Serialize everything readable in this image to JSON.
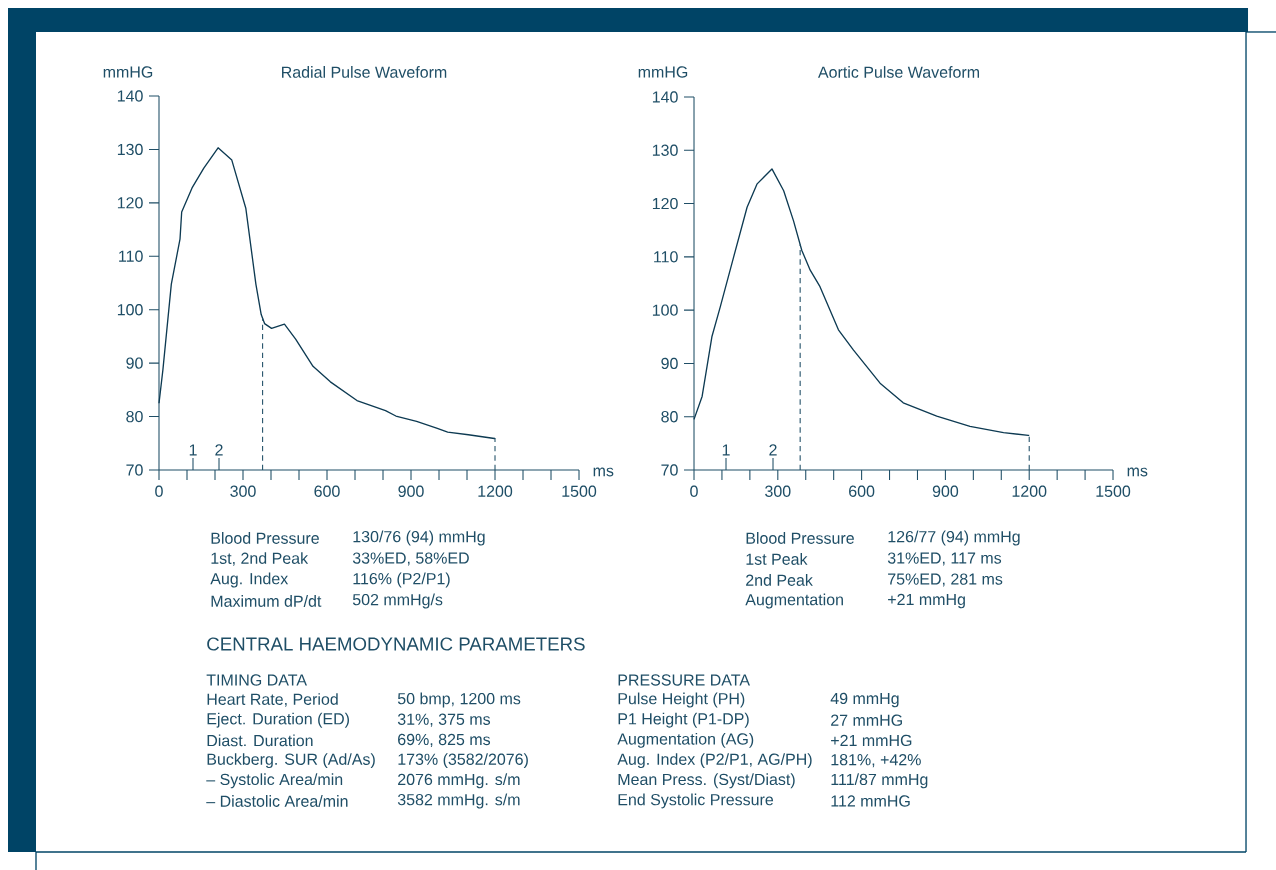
{
  "chart_data": [
    {
      "type": "line",
      "title": "Radial Pulse Waveform",
      "xlabel": "ms",
      "ylabel": "mmHG",
      "x": [
        0,
        14,
        44,
        75,
        81,
        118,
        160,
        211,
        260,
        310,
        346,
        365,
        377,
        402,
        448,
        488,
        550,
        612,
        707,
        809,
        846,
        920,
        994,
        1031,
        1105,
        1198,
        1200
      ],
      "series": [
        {
          "color": "#0d3a52",
          "values": [
            82.5,
            88.8,
            104.8,
            113.2,
            118.3,
            122.8,
            126.5,
            130.3,
            128.0,
            119.0,
            104.8,
            99.1,
            97.4,
            96.5,
            97.3,
            94.5,
            89.4,
            86.5,
            83.0,
            81.1,
            80.1,
            79.1,
            77.8,
            77.1,
            76.6,
            75.9,
            76.0
          ]
        }
      ],
      "xlim": [
        0,
        1500
      ],
      "ylim": [
        70,
        140
      ],
      "xticks": [
        0,
        {
          "value": 100,
          "label": null
        },
        {
          "value": 200,
          "label": null
        },
        300,
        {
          "value": 400,
          "label": null
        },
        {
          "value": 500,
          "label": null
        },
        600,
        {
          "value": 700,
          "label": null
        },
        {
          "value": 800,
          "label": null
        },
        900,
        {
          "value": 1000,
          "label": null
        },
        {
          "value": 1100,
          "label": null
        },
        1200,
        {
          "value": 1300,
          "label": null
        },
        {
          "value": 1400,
          "label": null
        },
        1500
      ],
      "yticks": [
        70,
        80,
        90,
        100,
        110,
        120,
        130,
        140
      ],
      "ref_lines": [
        {
          "axis": "x",
          "value": 370,
          "line_style": "dashed"
        },
        {
          "axis": "x",
          "value": 1200,
          "line_style": "dashed"
        }
      ],
      "annotations": [
        "1",
        "2",
        "Blood Pressure",
        "130/76 (94) mmHg",
        "1st, 2nd Peak",
        "33%ED, 58%ED",
        "Aug. Index",
        "116% (P2/P1)",
        "Maximum dP/dt",
        "502 mmHg/s"
      ]
    },
    {
      "type": "line",
      "title": "Aortic Pulse Waveform",
      "xlabel": "ms",
      "ylabel": "mmHG",
      "x": [
        0,
        29,
        46.5,
        64,
        94,
        142,
        190,
        226,
        279,
        321,
        356,
        386,
        416,
        451,
        517,
        571,
        666,
        749,
        869,
        988,
        1108,
        1197,
        1200
      ],
      "series": [
        {
          "color": "#0d3a52",
          "values": [
            79.5,
            83.8,
            89.4,
            95.0,
            100.6,
            110.0,
            119.3,
            123.7,
            126.5,
            122.4,
            116.8,
            111.2,
            107.5,
            104.4,
            96.3,
            92.5,
            86.3,
            82.6,
            80.1,
            78.2,
            77.0,
            76.5,
            76.5
          ]
        }
      ],
      "xlim": [
        0,
        1500
      ],
      "ylim": [
        70,
        140
      ],
      "xticks": [
        0,
        {
          "value": 100,
          "label": null
        },
        {
          "value": 200,
          "label": null
        },
        300,
        {
          "value": 400,
          "label": null
        },
        {
          "value": 500,
          "label": null
        },
        600,
        {
          "value": 700,
          "label": null
        },
        {
          "value": 800,
          "label": null
        },
        900,
        {
          "value": 1000,
          "label": null
        },
        {
          "value": 1100,
          "label": null
        },
        1200,
        {
          "value": 1300,
          "label": null
        },
        {
          "value": 1400,
          "label": null
        },
        1500
      ],
      "yticks": [
        70,
        80,
        90,
        100,
        110,
        120,
        130,
        140
      ],
      "ref_lines": [
        {
          "axis": "x",
          "value": 380,
          "line_style": "dashed"
        },
        {
          "axis": "x",
          "value": 1200,
          "line_style": "dashed"
        }
      ],
      "annotations": [
        "1",
        "2",
        "Blood Pressure",
        "126/77 (94) mmHg",
        "1st Peak",
        "31%ED, 117 ms",
        "2nd Peak",
        "75%ED, 281 ms",
        "Augmentation",
        "+21 mmHg"
      ]
    },
    {
      "type": "other",
      "title": "CENTRAL HAEMODYNAMIC PARAMETERS",
      "annotations": [
        "TIMING DATA",
        "Heart Rate, Period",
        "50 bmp, 1200 ms",
        "Eject. Duration (ED)",
        "31%, 375 ms",
        "Diast. Duration",
        "69%, 825 ms",
        "Buckberg. SUR (Ad/As)",
        "173% (3582/2076)",
        "– Systolic Area/min",
        "2076 mmHg. s/m",
        "– Diastolic Area/min",
        "3582 mmHg. s/m",
        "PRESSURE DATA",
        "Pulse Height (PH)",
        "49 mmHg",
        "P1 Height (P1-DP)",
        "27 mmHG",
        "Augmentation (AG)",
        "+21 mmHG",
        "Aug. Index (P2/P1, AG/PH)",
        "181%, +42%",
        "Mean Press. (Syst/Diast)",
        "111/87 mmHg",
        "End Systolic Pressure",
        "112 mmHG"
      ]
    }
  ]
}
